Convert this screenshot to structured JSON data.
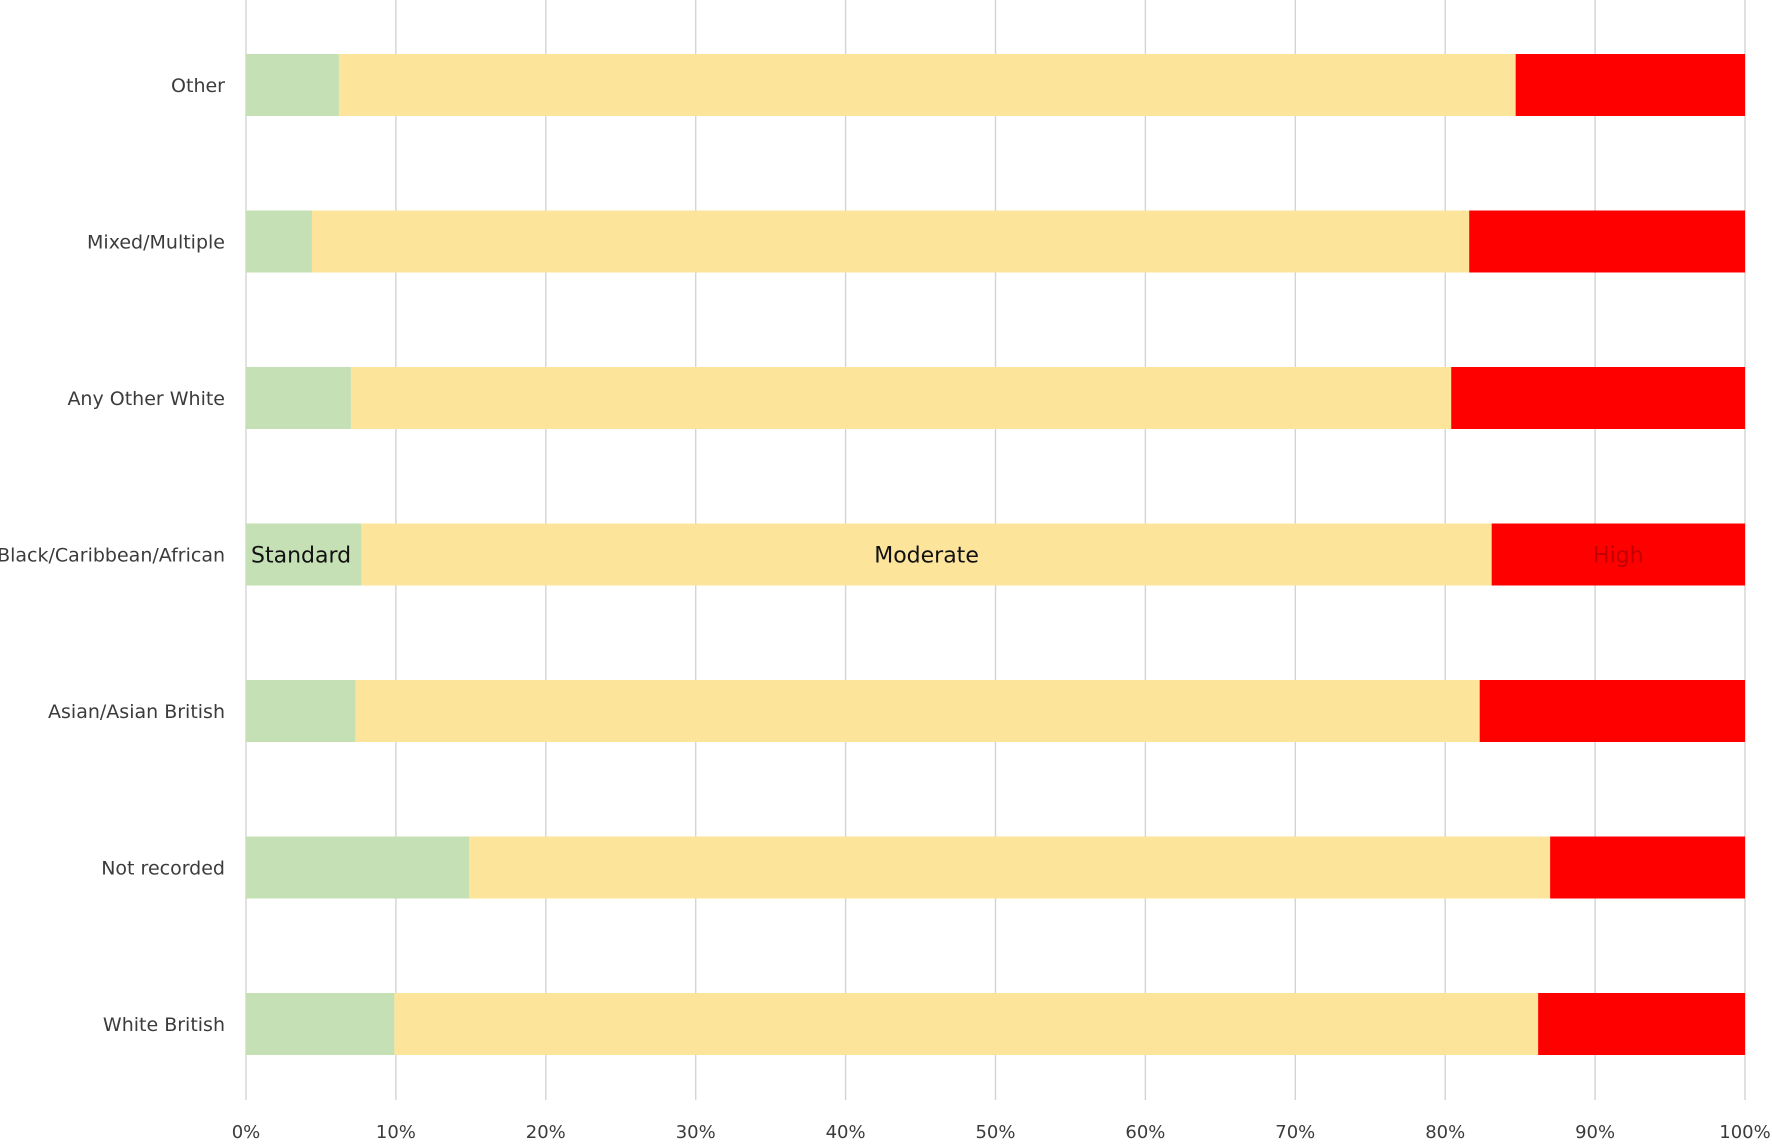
{
  "chart_data": {
    "type": "bar",
    "orientation": "horizontal",
    "stacked": "100%",
    "categories": [
      "Other",
      "Mixed/Multiple",
      "Any Other White",
      "Black/Caribbean/African",
      "Asian/Asian British",
      "Not recorded",
      "White British"
    ],
    "series": [
      {
        "name": "Standard",
        "color": "#c5e0b4",
        "values": [
          6.2,
          4.4,
          7.0,
          7.7,
          7.3,
          14.9,
          9.9
        ]
      },
      {
        "name": "Moderate",
        "color": "#fce49a",
        "values": [
          78.5,
          77.2,
          73.4,
          75.4,
          75.0,
          72.1,
          76.3
        ]
      },
      {
        "name": "High",
        "color": "#ff0000",
        "values": [
          15.3,
          18.4,
          19.6,
          16.9,
          17.7,
          13.0,
          13.8
        ]
      }
    ],
    "segment_labels_category": "Black/Caribbean/African",
    "x_ticks": [
      "0%",
      "10%",
      "20%",
      "30%",
      "40%",
      "50%",
      "60%",
      "70%",
      "80%",
      "90%",
      "100%"
    ],
    "xlim": [
      0,
      100
    ],
    "xlabel": "",
    "ylabel": "",
    "title": "",
    "grid": "vertical",
    "legend": "none"
  }
}
